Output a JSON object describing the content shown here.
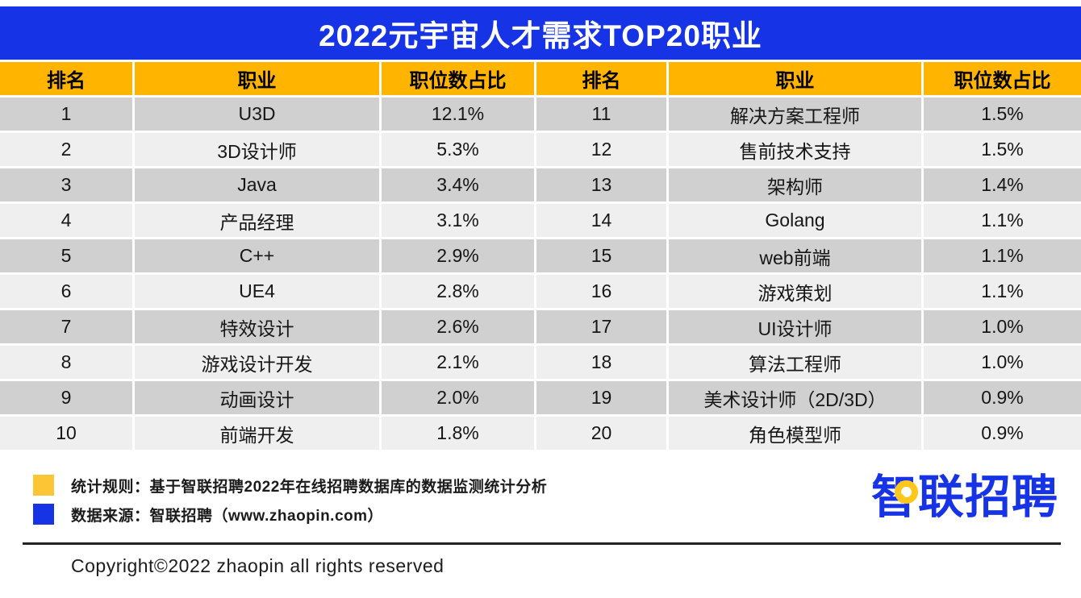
{
  "title": "2022元宇宙人才需求TOP20职业",
  "table": {
    "headers": [
      "排名",
      "职业",
      "职位数占比",
      "排名",
      "职业",
      "职位数占比"
    ]
  },
  "chart_data": {
    "type": "table",
    "title": "2022元宇宙人才需求TOP20职业",
    "columns": [
      "排名",
      "职业",
      "职位数占比"
    ],
    "rows": [
      [
        "1",
        "U3D",
        "12.1%"
      ],
      [
        "2",
        "3D设计师",
        "5.3%"
      ],
      [
        "3",
        "Java",
        "3.4%"
      ],
      [
        "4",
        "产品经理",
        "3.1%"
      ],
      [
        "5",
        "C++",
        "2.9%"
      ],
      [
        "6",
        "UE4",
        "2.8%"
      ],
      [
        "7",
        "特效设计",
        "2.6%"
      ],
      [
        "8",
        "游戏设计开发",
        "2.1%"
      ],
      [
        "9",
        "动画设计",
        "2.0%"
      ],
      [
        "10",
        "前端开发",
        "1.8%"
      ],
      [
        "11",
        "解决方案工程师",
        "1.5%"
      ],
      [
        "12",
        "售前技术支持",
        "1.5%"
      ],
      [
        "13",
        "架构师",
        "1.4%"
      ],
      [
        "14",
        "Golang",
        "1.1%"
      ],
      [
        "15",
        "web前端",
        "1.1%"
      ],
      [
        "16",
        "游戏策划",
        "1.1%"
      ],
      [
        "17",
        "UI设计师",
        "1.0%"
      ],
      [
        "18",
        "算法工程师",
        "1.0%"
      ],
      [
        "19",
        "美术设计师（2D/3D）",
        "0.9%"
      ],
      [
        "20",
        "角色模型师",
        "0.9%"
      ]
    ]
  },
  "footer": {
    "notes": [
      {
        "swatch": "yellow-swatch",
        "color": "#FBC535",
        "text": "统计规则：基于智联招聘2022年在线招聘数据库的数据监测统计分析"
      },
      {
        "swatch": "blue-swatch",
        "color": "#1733E6",
        "text": "数据来源：智联招聘（www.zhaopin.com）"
      }
    ],
    "logo_text": "智联招聘",
    "copyright": "Copyright©2022 zhaopin all rights reserved"
  },
  "colors": {
    "brand_blue": "#1733E6",
    "header_orange": "#FFB400",
    "legend_yellow": "#FBC535",
    "logo_bubble_yellow": "#FFC71C",
    "row_dark": "#D0D0D0",
    "row_light": "#EFEFEF"
  }
}
